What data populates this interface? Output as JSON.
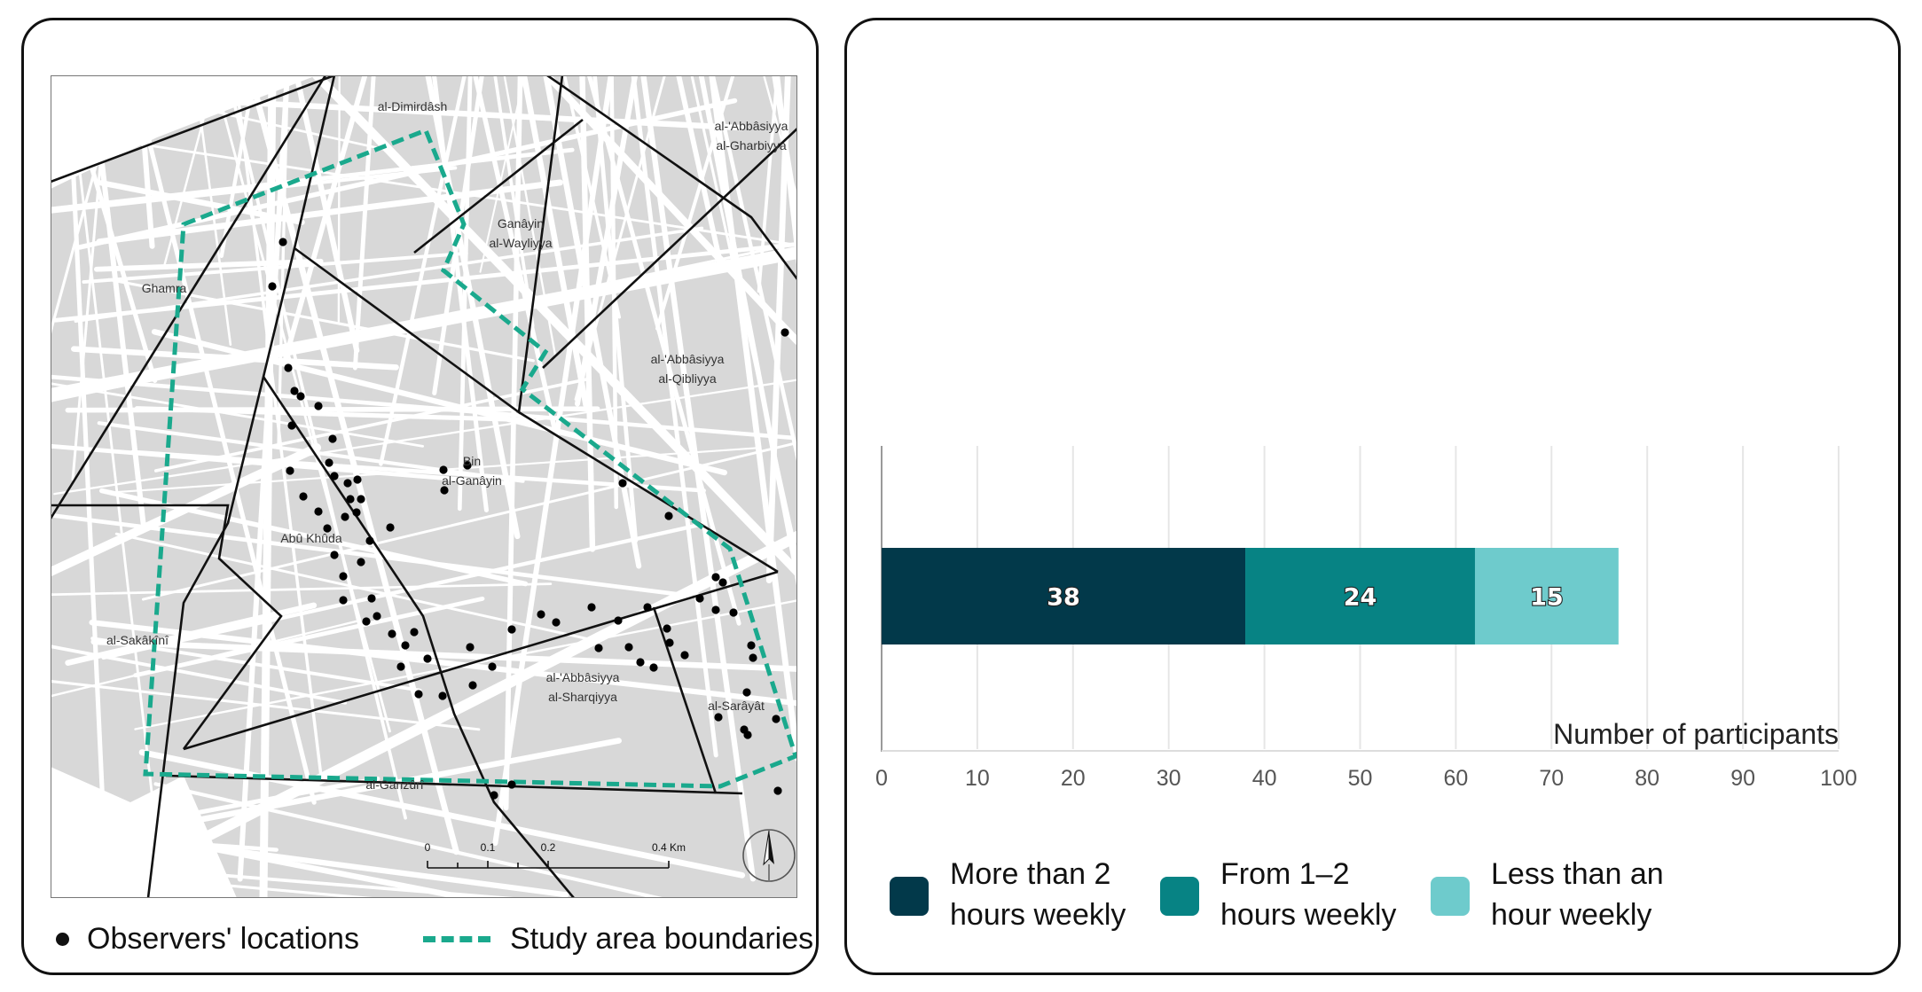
{
  "map": {
    "neighbourhoods": [
      "al-Dimirdâsh",
      "al-'Abbâsiyya\nal-Gharbiyya",
      "Ganâyin\nal-Wayliyya",
      "Ghamra",
      "al-'Abbâsiyya\nal-Qibliyya",
      "Bin\nal-Ganâyin",
      "Abû Khûda",
      "al-Sakâkînî",
      "al-'Abbâsiyya\nal-Sharqiyya",
      "al-Sarâyât",
      "al-Ganzûrî"
    ],
    "scale_bar": {
      "labels": [
        "0",
        "0.1",
        "0.2",
        "0.4 Km"
      ]
    },
    "north_arrow_icon": "north-arrow-icon",
    "colors": {
      "blocks": "#d9d9d9",
      "streets": "#ffffff",
      "boundary": "#1aa98d",
      "district_lines": "#111111",
      "points": "#000000"
    },
    "legend": {
      "observers": "Observers' locations",
      "study_area": "Study area boundaries"
    }
  },
  "chart_data": {
    "type": "bar",
    "orientation": "horizontal",
    "stacked": true,
    "xlabel": "Number of participants",
    "xlim": [
      0,
      100
    ],
    "ticks": [
      0,
      10,
      20,
      30,
      40,
      50,
      60,
      70,
      80,
      90,
      100
    ],
    "grid": true,
    "legend_position": "bottom",
    "series": [
      {
        "name": "More than 2\nhours weekly",
        "value": 38,
        "color": "#02394a"
      },
      {
        "name": "From 1–2\nhours weekly",
        "value": 24,
        "color": "#078384"
      },
      {
        "name": "Less than an\nhour weekly",
        "value": 15,
        "color": "#6ecbcc"
      }
    ]
  }
}
